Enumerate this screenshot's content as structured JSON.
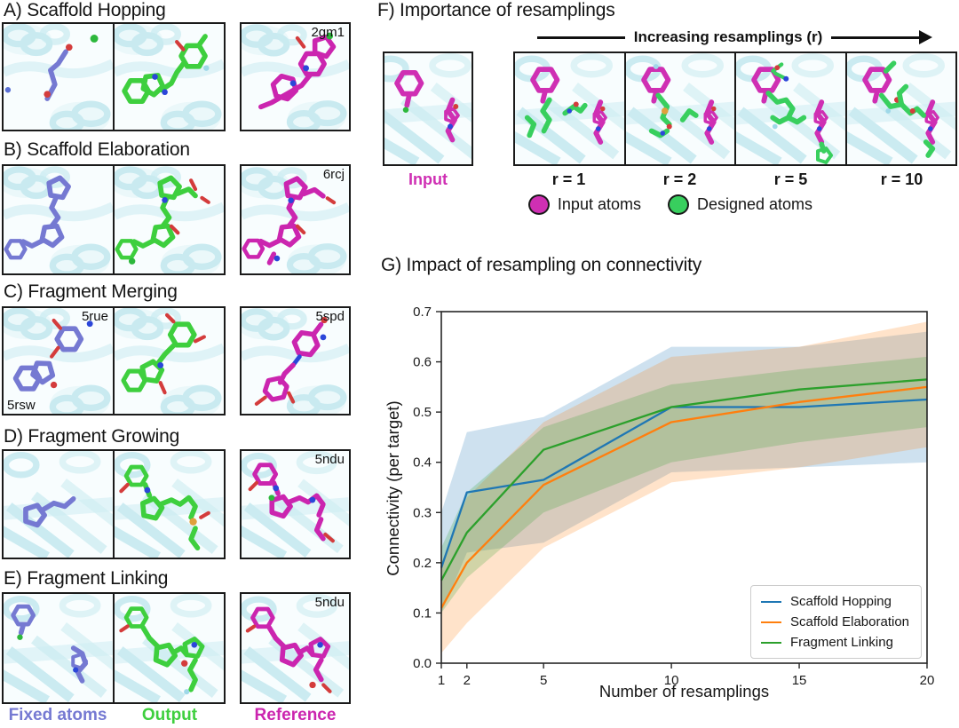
{
  "panels": [
    {
      "title": "A) Scaffold Hopping",
      "ref_tag": "2gm1"
    },
    {
      "title": "B) Scaffold Elaboration",
      "ref_tag": "6rcj"
    },
    {
      "title": "C) Fragment Merging",
      "fixed_tag_tr": "5rue",
      "fixed_tag_bl": "5rsw",
      "ref_tag": "5spd"
    },
    {
      "title": "D) Fragment Growing",
      "ref_tag": "5ndu"
    },
    {
      "title": "E) Fragment Linking",
      "ref_tag": "5ndu"
    }
  ],
  "column_labels": {
    "fixed": "Fixed atoms",
    "output": "Output",
    "reference": "Reference"
  },
  "panel_f": {
    "title": "F) Importance of resamplings",
    "arrow_label": "Increasing resamplings (r)",
    "input_label": "Input",
    "r_labels": [
      "r = 1",
      "r = 2",
      "r = 5",
      "r = 10"
    ],
    "atom_legend": [
      {
        "label": "Input atoms",
        "color_key": "input_atoms"
      },
      {
        "label": "Designed atoms",
        "color_key": "designed_atoms"
      }
    ]
  },
  "panel_g": {
    "title": "G) Impact of resampling on connectivity"
  },
  "colors": {
    "fixed": "#7579d2",
    "output": "#3ecf3e",
    "reference": "#cb25af",
    "input_atoms": "#cf2fb3",
    "designed_atoms": "#38cf5e",
    "protein": "#c4e9ef",
    "oxygen": "#d43c3c",
    "nitrogen": "#2b46d9"
  },
  "chart_data": {
    "type": "line",
    "title": "G) Impact of resampling on connectivity",
    "x": [
      1,
      2,
      5,
      10,
      15,
      20
    ],
    "series": [
      {
        "name": "Scaffold Hopping",
        "color": "#1f77b4",
        "values": [
          0.19,
          0.34,
          0.365,
          0.51,
          0.51,
          0.525
        ],
        "band_lower": [
          0.1,
          0.22,
          0.24,
          0.38,
          0.39,
          0.4
        ],
        "band_upper": [
          0.3,
          0.46,
          0.49,
          0.63,
          0.63,
          0.66
        ]
      },
      {
        "name": "Scaffold Elaboration",
        "color": "#ff7f0e",
        "values": [
          0.11,
          0.2,
          0.355,
          0.48,
          0.52,
          0.55
        ],
        "band_lower": [
          0.02,
          0.08,
          0.23,
          0.36,
          0.39,
          0.43
        ],
        "band_upper": [
          0.2,
          0.33,
          0.48,
          0.61,
          0.63,
          0.68
        ]
      },
      {
        "name": "Fragment Linking",
        "color": "#2ca02c",
        "values": [
          0.165,
          0.26,
          0.425,
          0.51,
          0.545,
          0.565
        ],
        "band_lower": [
          0.1,
          0.17,
          0.3,
          0.4,
          0.44,
          0.47
        ],
        "band_upper": [
          0.23,
          0.34,
          0.47,
          0.555,
          0.585,
          0.61
        ]
      }
    ],
    "xlabel": "Number of resamplings",
    "ylabel": "Connectivity (per target)",
    "xticks": [
      1,
      2,
      5,
      10,
      15,
      20
    ],
    "yticks": [
      0.0,
      0.1,
      0.2,
      0.3,
      0.4,
      0.5,
      0.6,
      0.7
    ],
    "xlim": [
      1,
      20
    ],
    "ylim": [
      0.0,
      0.7
    ],
    "grid": false,
    "legend_position": "lower right"
  }
}
